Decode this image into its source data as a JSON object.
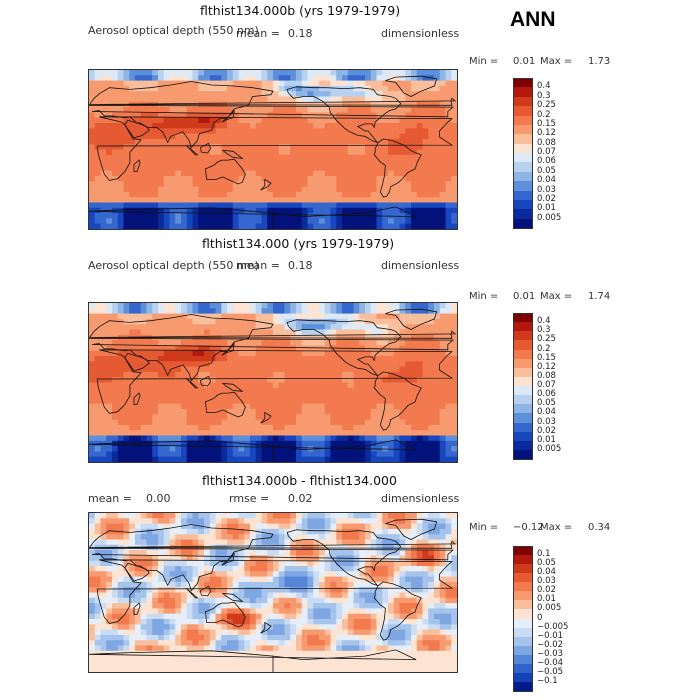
{
  "figure_title": "ANN",
  "chart_data": [
    {
      "type": "heatmap",
      "title": "flthist134.000b (yrs 1979-1979)",
      "variable": "Aerosol optical depth (550 nm)",
      "mean_label": "mean =",
      "mean_value": "0.18",
      "units": "dimensionless",
      "min_label": "Min =",
      "min_value": "0.01",
      "max_label": "Max =",
      "max_value": "1.73",
      "colorbar_levels": [
        "0.4",
        "0.3",
        "0.25",
        "0.2",
        "0.15",
        "0.12",
        "0.08",
        "0.07",
        "0.06",
        "0.05",
        "0.04",
        "0.03",
        "0.02",
        "0.01",
        "0.005"
      ],
      "colorbar_colors": [
        "#7f0000",
        "#b2180e",
        "#d03a1c",
        "#e55a32",
        "#f27a4e",
        "#f79a70",
        "#f9bf9d",
        "#fde4d2",
        "#dce9f7",
        "#b8d1f0",
        "#8fb4e6",
        "#5e8fda",
        "#3567cf",
        "#1746bf",
        "#0a2a9c",
        "#03127a"
      ]
    },
    {
      "type": "heatmap",
      "title": "flthist134.000 (yrs 1979-1979)",
      "variable": "Aerosol optical depth (550 nm)",
      "mean_label": "mean =",
      "mean_value": "0.18",
      "units": "dimensionless",
      "min_label": "Min =",
      "min_value": "0.01",
      "max_label": "Max =",
      "max_value": "1.74",
      "colorbar_levels": [
        "0.4",
        "0.3",
        "0.25",
        "0.2",
        "0.15",
        "0.12",
        "0.08",
        "0.07",
        "0.06",
        "0.05",
        "0.04",
        "0.03",
        "0.02",
        "0.01",
        "0.005"
      ],
      "colorbar_colors": [
        "#7f0000",
        "#b2180e",
        "#d03a1c",
        "#e55a32",
        "#f27a4e",
        "#f79a70",
        "#f9bf9d",
        "#fde4d2",
        "#dce9f7",
        "#b8d1f0",
        "#8fb4e6",
        "#5e8fda",
        "#3567cf",
        "#1746bf",
        "#0a2a9c",
        "#03127a"
      ]
    },
    {
      "type": "heatmap",
      "title": "flthist134.000b - flthist134.000",
      "mean_label": "mean =",
      "mean_value": "0.00",
      "rmse_label": "rmse =",
      "rmse_value": "0.02",
      "units": "dimensionless",
      "min_label": "Min =",
      "min_value": "−0.12",
      "max_label": "Max =",
      "max_value": "0.34",
      "colorbar_levels": [
        "0.1",
        "0.05",
        "0.04",
        "0.03",
        "0.02",
        "0.01",
        "0.005",
        "0",
        "−0.005",
        "−0.01",
        "−0.02",
        "−0.03",
        "−0.04",
        "−0.05",
        "−0.1"
      ],
      "colorbar_colors": [
        "#7f0000",
        "#b2180e",
        "#d03a1c",
        "#e55a32",
        "#f27a4e",
        "#f79a70",
        "#f9bf9d",
        "#fde4d2",
        "#e6eefa",
        "#c9dcf4",
        "#a6c3ec",
        "#7ea6e2",
        "#5585d7",
        "#2f62ca",
        "#1442b8",
        "#031a8c"
      ]
    }
  ]
}
